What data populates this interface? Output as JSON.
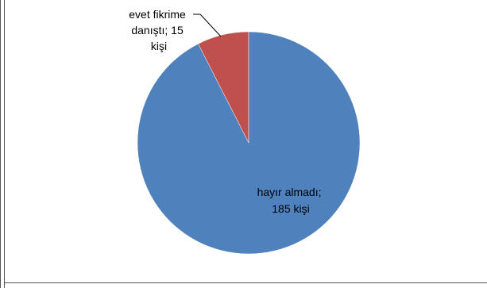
{
  "chart_data": {
    "type": "pie",
    "categories": [
      "evet fikrime danıştı",
      "hayır almadı"
    ],
    "values": [
      15,
      185
    ],
    "unit": "kişi",
    "labels": [
      {
        "category": "evet fikrime danıştı",
        "lines": [
          "evet fikrime",
          "danıştı; 15",
          "kişi"
        ]
      },
      {
        "category": "hayır almadı",
        "lines": [
          "hayır almadı;",
          "185 kişi"
        ]
      }
    ],
    "colors": [
      "#C0504D",
      "#4F81BD"
    ],
    "legend": "none",
    "title": ""
  }
}
